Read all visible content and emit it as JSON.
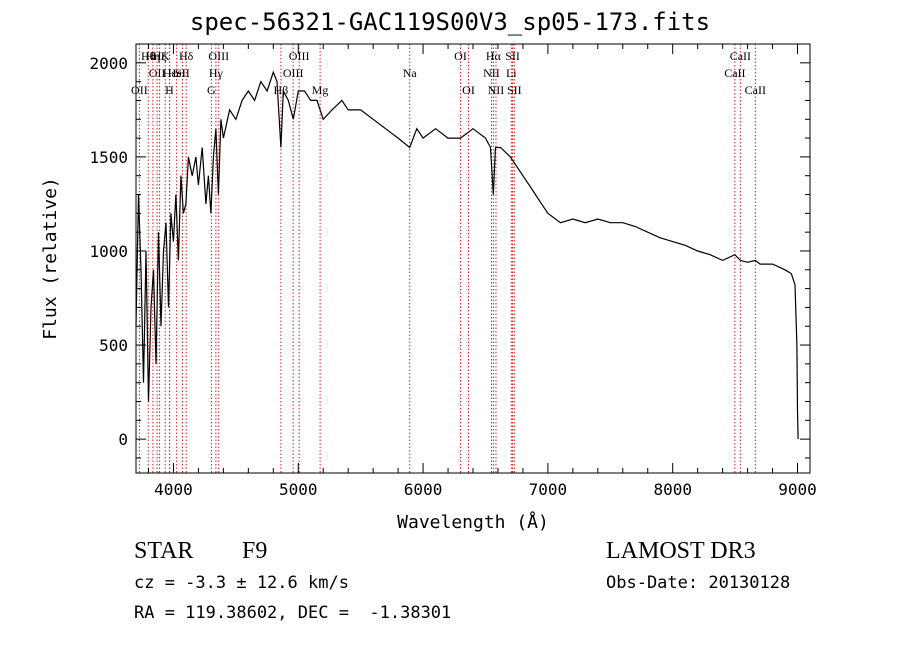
{
  "chart_data": {
    "type": "line",
    "title": "spec-56321-GAC119S00V3_sp05-173.fits",
    "xlabel": "Wavelength (Å)",
    "ylabel": "Flux (relative)",
    "xlim": [
      3700,
      9100
    ],
    "ylim": [
      -180,
      2100
    ],
    "xticks": [
      4000,
      5000,
      6000,
      7000,
      8000,
      9000
    ],
    "yticks": [
      0,
      500,
      1000,
      1500,
      2000
    ],
    "series": [
      {
        "name": "flux",
        "x": [
          3700,
          3720,
          3740,
          3760,
          3780,
          3800,
          3820,
          3840,
          3860,
          3880,
          3900,
          3920,
          3940,
          3960,
          3980,
          4000,
          4020,
          4040,
          4060,
          4080,
          4100,
          4120,
          4150,
          4180,
          4200,
          4230,
          4260,
          4280,
          4300,
          4320,
          4340,
          4360,
          4380,
          4400,
          4450,
          4500,
          4550,
          4600,
          4650,
          4700,
          4750,
          4800,
          4830,
          4861,
          4880,
          4920,
          4960,
          5000,
          5050,
          5100,
          5150,
          5200,
          5270,
          5350,
          5400,
          5500,
          5600,
          5700,
          5800,
          5893,
          5950,
          6000,
          6100,
          6200,
          6300,
          6400,
          6500,
          6540,
          6563,
          6580,
          6620,
          6700,
          6800,
          6850,
          6900,
          6950,
          7000,
          7100,
          7200,
          7300,
          7400,
          7500,
          7600,
          7700,
          7800,
          7900,
          8000,
          8100,
          8200,
          8300,
          8400,
          8498,
          8542,
          8600,
          8662,
          8700,
          8800,
          8900,
          8950,
          8980,
          8995,
          9000,
          9005
        ],
        "values": [
          600,
          1300,
          900,
          300,
          1000,
          200,
          700,
          900,
          400,
          1100,
          600,
          1000,
          1150,
          700,
          1200,
          1050,
          1300,
          950,
          1400,
          1200,
          1250,
          1500,
          1400,
          1500,
          1350,
          1550,
          1250,
          1400,
          1200,
          1500,
          1650,
          1300,
          1700,
          1600,
          1750,
          1700,
          1800,
          1850,
          1800,
          1900,
          1850,
          1950,
          1900,
          1550,
          1850,
          1800,
          1700,
          1850,
          1850,
          1800,
          1800,
          1700,
          1750,
          1800,
          1750,
          1750,
          1700,
          1650,
          1600,
          1550,
          1650,
          1600,
          1650,
          1600,
          1600,
          1650,
          1600,
          1550,
          1300,
          1550,
          1550,
          1500,
          1400,
          1350,
          1300,
          1250,
          1200,
          1150,
          1170,
          1150,
          1170,
          1150,
          1150,
          1130,
          1100,
          1070,
          1050,
          1030,
          1000,
          980,
          950,
          980,
          950,
          940,
          950,
          930,
          930,
          900,
          880,
          820,
          500,
          150,
          0
        ]
      }
    ],
    "lines": [
      {
        "wl": 3727,
        "label": "OII",
        "row": 2
      },
      {
        "wl": 3798,
        "label": "Hθ",
        "row": 0
      },
      {
        "wl": 3835,
        "label": "Hη",
        "row": 0
      },
      {
        "wl": 3869,
        "label": "OII",
        "row": 1
      },
      {
        "wl": 3889,
        "label": "Hζ",
        "row": 0
      },
      {
        "wl": 3934,
        "label": "K",
        "row": 0
      },
      {
        "wl": 3968,
        "label": "H",
        "row": 2
      },
      {
        "wl": 3970,
        "label": "Hε",
        "row": 1
      },
      {
        "wl": 4026,
        "label": "HeI",
        "row": 1
      },
      {
        "wl": 4072,
        "label": "SII",
        "row": 1
      },
      {
        "wl": 4102,
        "label": "Hδ",
        "row": 0
      },
      {
        "wl": 4304,
        "label": "G",
        "row": 2
      },
      {
        "wl": 4340,
        "label": "Hγ",
        "row": 1
      },
      {
        "wl": 4363,
        "label": "OIII",
        "row": 0
      },
      {
        "wl": 4861,
        "label": "Hβ",
        "row": 2
      },
      {
        "wl": 4959,
        "label": "OIII",
        "row": 1
      },
      {
        "wl": 5007,
        "label": "OIII",
        "row": 0
      },
      {
        "wl": 5175,
        "label": "Mg",
        "row": 2
      },
      {
        "wl": 5893,
        "label": "Na",
        "row": 1
      },
      {
        "wl": 6300,
        "label": "OI",
        "row": 0
      },
      {
        "wl": 6364,
        "label": "OI",
        "row": 2
      },
      {
        "wl": 6548,
        "label": "NII",
        "row": 1
      },
      {
        "wl": 6563,
        "label": "Hα",
        "row": 0
      },
      {
        "wl": 6584,
        "label": "NII",
        "row": 2
      },
      {
        "wl": 6707,
        "label": "Li",
        "row": 1
      },
      {
        "wl": 6717,
        "label": "SII",
        "row": 0
      },
      {
        "wl": 6731,
        "label": "SII",
        "row": 2
      },
      {
        "wl": 8498,
        "label": "CaII",
        "row": 1
      },
      {
        "wl": 8542,
        "label": "CaII",
        "row": 0
      },
      {
        "wl": 8662,
        "label": "CaII",
        "row": 2
      }
    ]
  },
  "info": {
    "class": "STAR",
    "subclass": "F9",
    "survey": "LAMOST DR3",
    "cz": "cz = -3.3 ± 12.6 km/s",
    "obs_date": "Obs-Date: 20130128",
    "radec": "RA = 119.38602, DEC =  -1.38301"
  }
}
